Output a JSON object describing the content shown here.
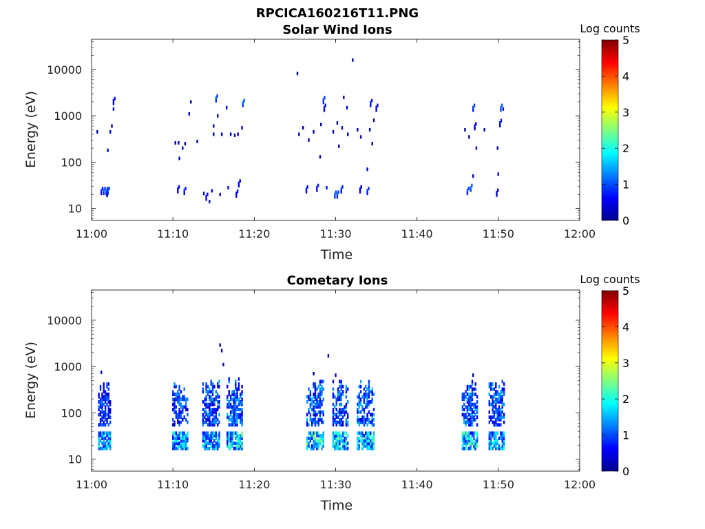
{
  "figure_title": "RPCICA160216T11.PNG",
  "colorbar": {
    "label": "Log counts",
    "ticks": [
      "0",
      "1",
      "2",
      "3",
      "4",
      "5"
    ],
    "range": [
      0,
      5
    ],
    "colormap": "jet"
  },
  "chart_data": [
    {
      "type": "heatmap",
      "title": "Solar Wind Ions",
      "xlabel": "Time",
      "ylabel": "Energy (eV)",
      "x_ticks": [
        "11:00",
        "11:10",
        "11:20",
        "11:30",
        "11:40",
        "11:50",
        "12:00"
      ],
      "xlim": [
        "11:00",
        "12:00"
      ],
      "y_scale": "log",
      "y_ticks": [
        "10",
        "100",
        "1000",
        "10000"
      ],
      "ylim": [
        5.5,
        45000
      ],
      "cells": [
        {
          "t": "11:00.7",
          "e": 450,
          "v": 0.2
        },
        {
          "t": "11:01.2",
          "e": 24,
          "v": 0.8
        },
        {
          "t": "11:01.5",
          "e": 24,
          "v": 1.0
        },
        {
          "t": "11:01.8",
          "e": 24,
          "v": 1.1
        },
        {
          "t": "11:02.0",
          "e": 24,
          "v": 0.9
        },
        {
          "t": "11:01.9",
          "e": 19,
          "v": 0.4
        },
        {
          "t": "11:02.0",
          "e": 180,
          "v": 0.2
        },
        {
          "t": "11:02.3",
          "e": 450,
          "v": 0.4
        },
        {
          "t": "11:02.5",
          "e": 600,
          "v": 0.3
        },
        {
          "t": "11:02.7",
          "e": 1400,
          "v": 0.5
        },
        {
          "t": "11:02.7",
          "e": 2100,
          "v": 0.6
        },
        {
          "t": "11:10.3",
          "e": 260,
          "v": 0.2
        },
        {
          "t": "11:10.7",
          "e": 260,
          "v": 0.3
        },
        {
          "t": "11:10.8",
          "e": 120,
          "v": 0.2
        },
        {
          "t": "11:11.2",
          "e": 200,
          "v": 0.2
        },
        {
          "t": "11:11.5",
          "e": 250,
          "v": 0.2
        },
        {
          "t": "11:10.6",
          "e": 26,
          "v": 0.7
        },
        {
          "t": "11:11.4",
          "e": 24,
          "v": 0.8
        },
        {
          "t": "11:12.0",
          "e": 1100,
          "v": 0.4
        },
        {
          "t": "11:12.2",
          "e": 2000,
          "v": 0.2
        },
        {
          "t": "11:13.0",
          "e": 280,
          "v": 0.2
        },
        {
          "t": "11:13.8",
          "e": 21,
          "v": 0.5
        },
        {
          "t": "11:14.1",
          "e": 18,
          "v": 0.7
        },
        {
          "t": "11:14.5",
          "e": 14,
          "v": 0.4
        },
        {
          "t": "11:14.8",
          "e": 24,
          "v": 0.5
        },
        {
          "t": "11:15.0",
          "e": 400,
          "v": 0.2
        },
        {
          "t": "11:15.0",
          "e": 600,
          "v": 0.2
        },
        {
          "t": "11:15.3",
          "e": 2400,
          "v": 1.1
        },
        {
          "t": "11:15.5",
          "e": 1000,
          "v": 0.2
        },
        {
          "t": "11:15.8",
          "e": 20,
          "v": 0.4
        },
        {
          "t": "11:16.0",
          "e": 400,
          "v": 0.2
        },
        {
          "t": "11:16.6",
          "e": 1500,
          "v": 0.3
        },
        {
          "t": "11:16.8",
          "e": 28,
          "v": 0.5
        },
        {
          "t": "11:17.1",
          "e": 400,
          "v": 0.3
        },
        {
          "t": "11:17.6",
          "e": 380,
          "v": 0.3
        },
        {
          "t": "11:17.8",
          "e": 21,
          "v": 0.6
        },
        {
          "t": "11:18.0",
          "e": 400,
          "v": 0.2
        },
        {
          "t": "11:18.1",
          "e": 35,
          "v": 0.7
        },
        {
          "t": "11:18.5",
          "e": 550,
          "v": 0.3
        },
        {
          "t": "11:18.6",
          "e": 1900,
          "v": 1.2
        },
        {
          "t": "11:25.3",
          "e": 8200,
          "v": 0.2
        },
        {
          "t": "11:25.5",
          "e": 400,
          "v": 0.2
        },
        {
          "t": "11:26.0",
          "e": 550,
          "v": 0.2
        },
        {
          "t": "11:26.4",
          "e": 26,
          "v": 0.8
        },
        {
          "t": "11:26.7",
          "e": 300,
          "v": 0.2
        },
        {
          "t": "11:27.3",
          "e": 450,
          "v": 0.2
        },
        {
          "t": "11:27.7",
          "e": 28,
          "v": 0.8
        },
        {
          "t": "11:28.1",
          "e": 130,
          "v": 0.2
        },
        {
          "t": "11:28.2",
          "e": 650,
          "v": 0.3
        },
        {
          "t": "11:28.5",
          "e": 2200,
          "v": 1.0
        },
        {
          "t": "11:28.6",
          "e": 1500,
          "v": 0.8
        },
        {
          "t": "11:28.9",
          "e": 28,
          "v": 0.4
        },
        {
          "t": "11:29.7",
          "e": 450,
          "v": 0.2
        },
        {
          "t": "11:29.9",
          "e": 20,
          "v": 1.1
        },
        {
          "t": "11:30.2",
          "e": 20,
          "v": 1.0
        },
        {
          "t": "11:30.2",
          "e": 700,
          "v": 0.2
        },
        {
          "t": "11:30.4",
          "e": 220,
          "v": 0.2
        },
        {
          "t": "11:30.7",
          "e": 26,
          "v": 0.9
        },
        {
          "t": "11:30.8",
          "e": 550,
          "v": 0.2
        },
        {
          "t": "11:31.0",
          "e": 2500,
          "v": 0.3
        },
        {
          "t": "11:31.4",
          "e": 1500,
          "v": 0.4
        },
        {
          "t": "11:31.5",
          "e": 400,
          "v": 0.2
        },
        {
          "t": "11:32.1",
          "e": 16000,
          "v": 0.2
        },
        {
          "t": "11:32.7",
          "e": 500,
          "v": 0.2
        },
        {
          "t": "11:33.1",
          "e": 350,
          "v": 0.2
        },
        {
          "t": "11:33.0",
          "e": 26,
          "v": 0.6
        },
        {
          "t": "11:33.9",
          "e": 24,
          "v": 0.9
        },
        {
          "t": "11:33.9",
          "e": 70,
          "v": 0.5
        },
        {
          "t": "11:34.2",
          "e": 500,
          "v": 0.3
        },
        {
          "t": "11:34.3",
          "e": 1900,
          "v": 0.8
        },
        {
          "t": "11:34.5",
          "e": 250,
          "v": 0.2
        },
        {
          "t": "11:34.7",
          "e": 800,
          "v": 0.3
        },
        {
          "t": "11:35.0",
          "e": 1500,
          "v": 0.6
        },
        {
          "t": "11:45.9",
          "e": 500,
          "v": 0.2
        },
        {
          "t": "11:46.2",
          "e": 24,
          "v": 1.0
        },
        {
          "t": "11:46.4",
          "e": 350,
          "v": 0.2
        },
        {
          "t": "11:46.6",
          "e": 28,
          "v": 1.2
        },
        {
          "t": "11:46.9",
          "e": 50,
          "v": 0.5
        },
        {
          "t": "11:46.9",
          "e": 1500,
          "v": 1.0
        },
        {
          "t": "11:47.1",
          "e": 600,
          "v": 0.6
        },
        {
          "t": "11:47.3",
          "e": 200,
          "v": 0.3
        },
        {
          "t": "11:48.3",
          "e": 500,
          "v": 0.3
        },
        {
          "t": "11:49.8",
          "e": 22,
          "v": 0.7
        },
        {
          "t": "11:49.9",
          "e": 200,
          "v": 0.3
        },
        {
          "t": "11:50.0",
          "e": 55,
          "v": 0.4
        },
        {
          "t": "11:50.2",
          "e": 700,
          "v": 0.8
        },
        {
          "t": "11:50.3",
          "e": 1500,
          "v": 1.2
        },
        {
          "t": "11:50.6",
          "e": 1400,
          "v": 0.5
        }
      ]
    },
    {
      "type": "heatmap",
      "title": "Cometary Ions",
      "xlabel": "Time",
      "ylabel": "Energy (eV)",
      "x_ticks": [
        "11:00",
        "11:10",
        "11:20",
        "11:30",
        "11:40",
        "11:50",
        "12:00"
      ],
      "xlim": [
        "11:00",
        "12:00"
      ],
      "y_scale": "log",
      "y_ticks": [
        "10",
        "100",
        "1000",
        "10000"
      ],
      "ylim": [
        5.5,
        45000
      ],
      "bursts": [
        {
          "t_start": "11:00.9",
          "t_end": "11:02.5",
          "e_low_max": 1.9,
          "e_high_max": 1.3
        },
        {
          "t_start": "11:10.0",
          "t_end": "11:11.8",
          "e_low_max": 2.2,
          "e_high_max": 1.4
        },
        {
          "t_start": "11:13.7",
          "t_end": "11:15.7",
          "e_low_max": 2.1,
          "e_high_max": 1.5
        },
        {
          "t_start": "11:16.7",
          "t_end": "11:18.6",
          "e_low_max": 2.5,
          "e_high_max": 1.6
        },
        {
          "t_start": "11:26.5",
          "t_end": "11:28.6",
          "e_low_max": 2.6,
          "e_high_max": 1.6
        },
        {
          "t_start": "11:29.7",
          "t_end": "11:31.6",
          "e_low_max": 2.4,
          "e_high_max": 1.5
        },
        {
          "t_start": "11:32.7",
          "t_end": "11:34.8",
          "e_low_max": 2.3,
          "e_high_max": 1.6
        },
        {
          "t_start": "11:45.6",
          "t_end": "11:47.6",
          "e_low_max": 2.5,
          "e_high_max": 1.6
        },
        {
          "t_start": "11:48.9",
          "t_end": "11:50.9",
          "e_low_max": 2.2,
          "e_high_max": 1.5
        }
      ],
      "isolated_cells": [
        {
          "t": "11:15.8",
          "e": 2900,
          "v": 0.2
        },
        {
          "t": "11:16.0",
          "e": 2200,
          "v": 0.2
        },
        {
          "t": "11:16.2",
          "e": 1100,
          "v": 0.2
        },
        {
          "t": "11:29.1",
          "e": 1700,
          "v": 0.2
        },
        {
          "t": "11:01.2",
          "e": 750,
          "v": 0.2
        },
        {
          "t": "11:27.3",
          "e": 700,
          "v": 0.2
        },
        {
          "t": "11:30.0",
          "e": 650,
          "v": 0.2
        },
        {
          "t": "11:46.9",
          "e": 650,
          "v": 0.2
        }
      ]
    }
  ]
}
